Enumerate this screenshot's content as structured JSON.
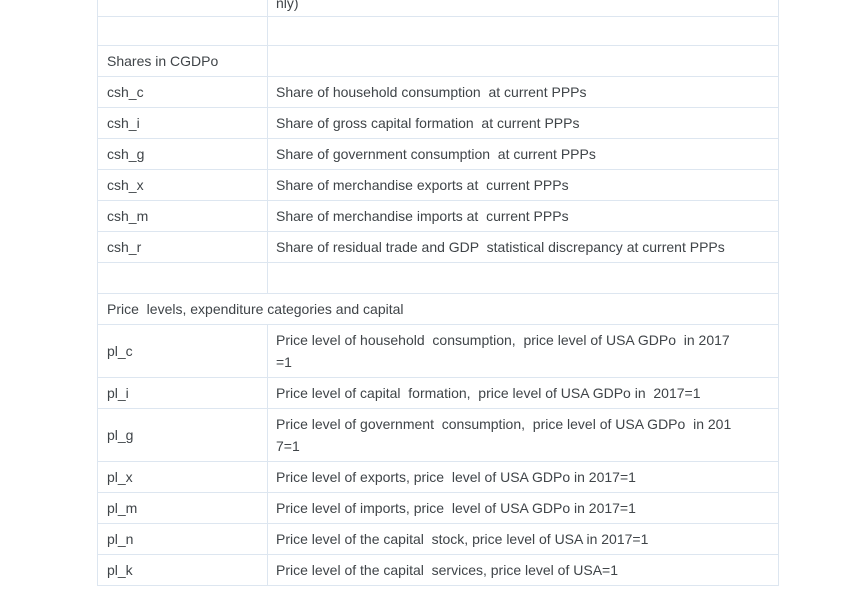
{
  "table": {
    "description": "Variable definition table",
    "rows": [
      {
        "kind": "partial-cutoff",
        "name": "",
        "desc": "nly)"
      },
      {
        "kind": "empty",
        "name": "",
        "desc": ""
      },
      {
        "kind": "group-header",
        "name": "Shares in CGDPo",
        "desc": ""
      },
      {
        "kind": "data",
        "name": "csh_c",
        "desc": "Share of household consumption  at current PPPs"
      },
      {
        "kind": "data",
        "name": "csh_i",
        "desc": "Share of gross capital formation  at current PPPs"
      },
      {
        "kind": "data",
        "name": "csh_g",
        "desc": "Share of government consumption  at current PPPs"
      },
      {
        "kind": "data",
        "name": "csh_x",
        "desc": "Share of merchandise exports at  current PPPs"
      },
      {
        "kind": "data",
        "name": "csh_m",
        "desc": "Share of merchandise imports at  current PPPs"
      },
      {
        "kind": "data",
        "name": "csh_r",
        "desc": "Share of residual trade and GDP  statistical discrepancy at current PPPs"
      },
      {
        "kind": "empty",
        "name": "",
        "desc": ""
      },
      {
        "kind": "section-span",
        "label": "Price  levels, expenditure categories and capital"
      },
      {
        "kind": "data",
        "name": "pl_c",
        "desc": "Price level of household  consumption,  price level of USA GDPo  in 2017\n=1"
      },
      {
        "kind": "data",
        "name": "pl_i",
        "desc": "Price level of capital  formation,  price level of USA GDPo in  2017=1"
      },
      {
        "kind": "data",
        "name": "pl_g",
        "desc": "Price level of government  consumption,  price level of USA GDPo  in 201\n7=1"
      },
      {
        "kind": "data",
        "name": "pl_x",
        "desc": "Price level of exports, price  level of USA GDPo in 2017=1"
      },
      {
        "kind": "data",
        "name": "pl_m",
        "desc": "Price level of imports, price  level of USA GDPo in 2017=1"
      },
      {
        "kind": "data",
        "name": "pl_n",
        "desc": "Price level of the capital  stock, price level of USA in 2017=1"
      },
      {
        "kind": "data",
        "name": "pl_k",
        "desc": "Price level of the capital  services, price level of USA=1"
      }
    ]
  }
}
